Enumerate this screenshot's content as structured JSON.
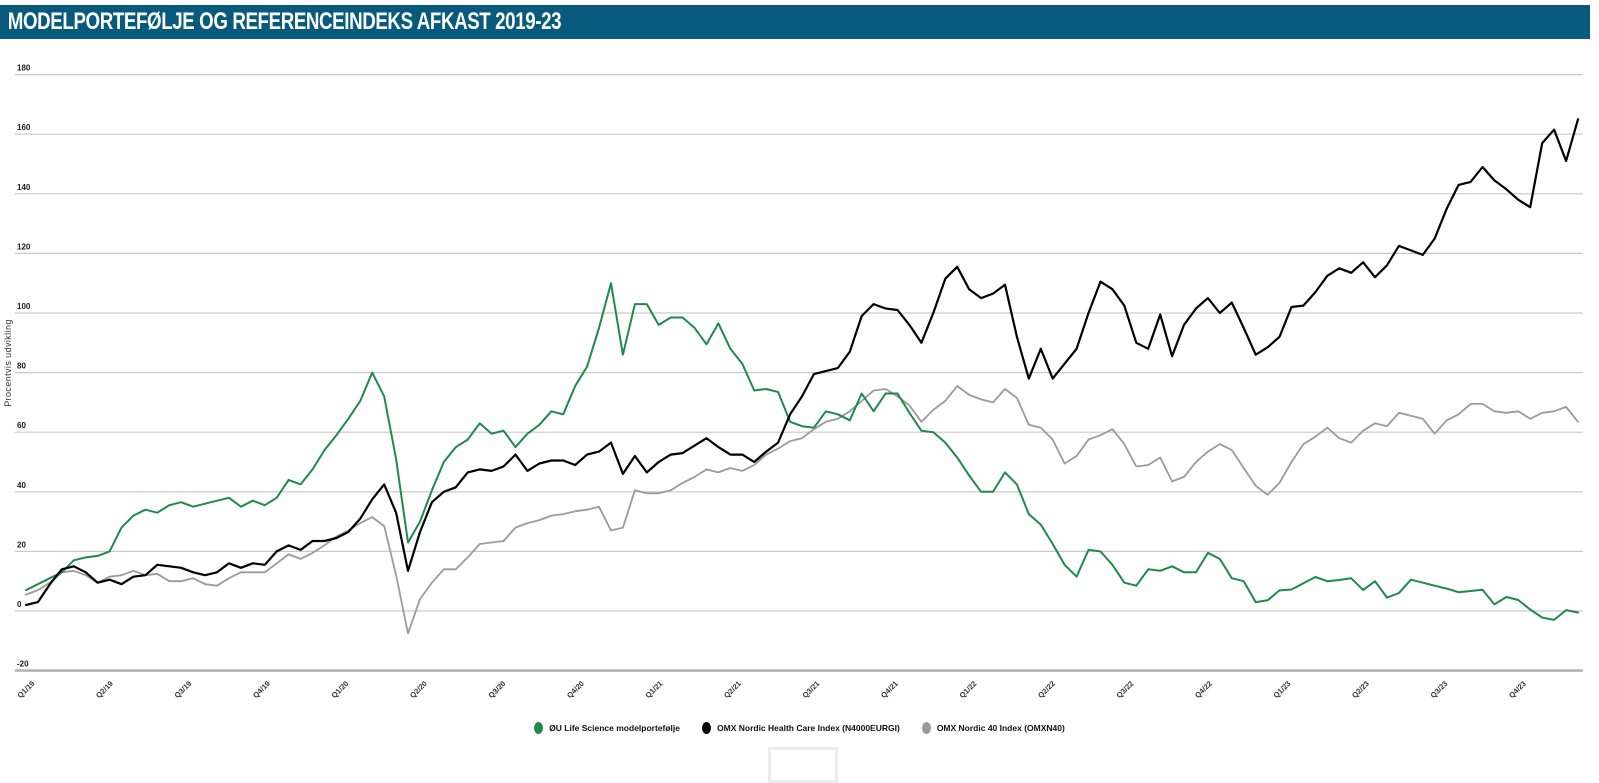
{
  "header": {
    "title": "MODELPORTEFØLJE OG REFERENCEINDEKS AFKAST 2019-23",
    "bg_color": "#075A7C",
    "text_color": "#FFFFFF"
  },
  "chart_data": {
    "type": "line",
    "title": "Modelportefølje og referenceindeks afkast 2019-23",
    "xlabel": "",
    "ylabel": "Procentvis udvikling",
    "ylim": [
      -20,
      180
    ],
    "ytick_step": 20,
    "grid": "horizontal",
    "gridline_color": "#C9C9C9",
    "bottom_line_color": "#ADADAD",
    "legend_position": "bottom-center",
    "categories": [
      "Q1/19",
      "Q2/19",
      "Q3/19",
      "Q4/19",
      "Q1/20",
      "Q2/20",
      "Q3/20",
      "Q4/20",
      "Q1/21",
      "Q2/21",
      "Q3/21",
      "Q4/21",
      "Q1/22",
      "Q2/22",
      "Q3/22",
      "Q4/22",
      "Q1/23",
      "Q2/23",
      "Q3/23",
      "Q4/23"
    ],
    "sampling": "131 evenly spaced (bi-weekly) points per series spanning Q1/19 to Q4/23",
    "series": [
      {
        "name": "ØU Life Science modelportefølje",
        "color": "#1E8A4B",
        "values": [
          7,
          9,
          11,
          13,
          17,
          18,
          18.5,
          20,
          28,
          32,
          34,
          33,
          35.5,
          36.5,
          35,
          36,
          37,
          38,
          35,
          37,
          35.5,
          38,
          44,
          42.5,
          47.5,
          54,
          59,
          64.5,
          70.5,
          80,
          72,
          51,
          23,
          30,
          40.5,
          50,
          55,
          57.5,
          63,
          59.5,
          60.5,
          55,
          59.5,
          62.5,
          67,
          66,
          75.5,
          82,
          95,
          110,
          86,
          103,
          103,
          96,
          98.5,
          98.5,
          95,
          89.5,
          96.5,
          88,
          83,
          74,
          74.5,
          73.5,
          63.5,
          62,
          61.5,
          67,
          66,
          64,
          73,
          67,
          73,
          73,
          66.5,
          60.5,
          60,
          56.5,
          51.5,
          45.5,
          40,
          40,
          46.5,
          42.5,
          32.5,
          29,
          22.5,
          15.5,
          11.5,
          20.5,
          20,
          15.5,
          9.5,
          8.5,
          14,
          13.5,
          15,
          13,
          13,
          19.5,
          17.5,
          11,
          10,
          3,
          3.6,
          6.9,
          7.2,
          9.3,
          11.4,
          10,
          10.4,
          11,
          7,
          10,
          4.5,
          6,
          10.5,
          9.5,
          8.5,
          7.5,
          6.3,
          6.7,
          7.1,
          2.2,
          4.7,
          3.7,
          0.5,
          -2.2,
          -3,
          0.3,
          -0.5
        ]
      },
      {
        "name": "OMX Nordic Health Care Index (N4000EURGI)",
        "color": "#000000",
        "values": [
          2,
          3,
          9,
          14,
          15,
          13,
          9.5,
          10.5,
          9,
          11.5,
          12,
          15.5,
          15,
          14.5,
          13,
          12,
          13,
          16,
          14.5,
          16,
          15.5,
          20,
          22,
          20.5,
          23.5,
          23.5,
          24.5,
          26.5,
          31,
          37.5,
          42.5,
          33,
          13.5,
          26.5,
          36.5,
          40,
          41.5,
          46.5,
          47.5,
          47,
          48.5,
          52.5,
          47,
          49.5,
          50.5,
          50.5,
          49,
          52.5,
          53.5,
          56.5,
          46,
          52,
          46.5,
          50,
          52.5,
          53,
          55.5,
          58,
          55,
          52.5,
          52.5,
          50,
          53.5,
          56.5,
          66,
          72,
          79.5,
          80.5,
          81.5,
          87,
          99,
          103,
          101.5,
          101,
          96,
          90,
          100,
          111.5,
          115.5,
          108,
          105,
          106.5,
          109.5,
          92,
          78,
          88,
          78,
          83,
          88,
          100,
          110.5,
          108,
          102.5,
          90,
          88,
          99.5,
          85.5,
          96,
          101.5,
          105,
          100,
          103.5,
          95,
          86,
          88.5,
          92,
          102,
          102.5,
          107,
          112.5,
          115,
          113.5,
          117,
          112,
          116,
          122.5,
          121,
          119.5,
          125,
          135,
          143,
          144,
          149,
          144.5,
          141.5,
          138,
          135.5,
          157,
          161.5,
          151,
          165
        ]
      },
      {
        "name": "OMX Nordic 40 Index (OMXN40)",
        "color": "#9B9B9B",
        "values": [
          5.5,
          7,
          9.5,
          13,
          13.5,
          12,
          9.5,
          11.5,
          12,
          13.5,
          12,
          12.5,
          10,
          10,
          11,
          9,
          8.5,
          11,
          13,
          13,
          13,
          16,
          19,
          17.5,
          19.5,
          22,
          25,
          27,
          29.5,
          31.5,
          28.5,
          12,
          -7.5,
          4,
          9.5,
          14,
          14,
          18,
          22.5,
          23,
          23.5,
          28,
          29.5,
          30.5,
          32,
          32.5,
          33.5,
          34,
          35,
          27,
          28,
          40.5,
          39.5,
          39.5,
          40.5,
          43,
          45,
          47.5,
          46.5,
          48,
          47,
          49,
          52.5,
          54.5,
          57,
          58,
          61,
          63.5,
          64.5,
          67,
          70.5,
          74,
          74.5,
          72,
          69,
          63.5,
          67.5,
          70.5,
          75.5,
          72.5,
          71,
          70,
          74.5,
          71.5,
          62.5,
          61.5,
          57.5,
          49.5,
          52,
          57.5,
          59,
          61,
          56,
          48.5,
          49,
          51.5,
          43.5,
          45,
          50,
          53.5,
          56,
          54,
          48,
          42,
          39,
          43,
          50,
          56,
          58.5,
          61.5,
          58,
          56.5,
          60.5,
          63,
          62,
          66.5,
          65.5,
          64.5,
          59.5,
          64,
          66,
          69.5,
          69.5,
          67,
          66.5,
          67,
          64.5,
          66.5,
          67,
          68.5,
          63.5
        ]
      }
    ]
  }
}
